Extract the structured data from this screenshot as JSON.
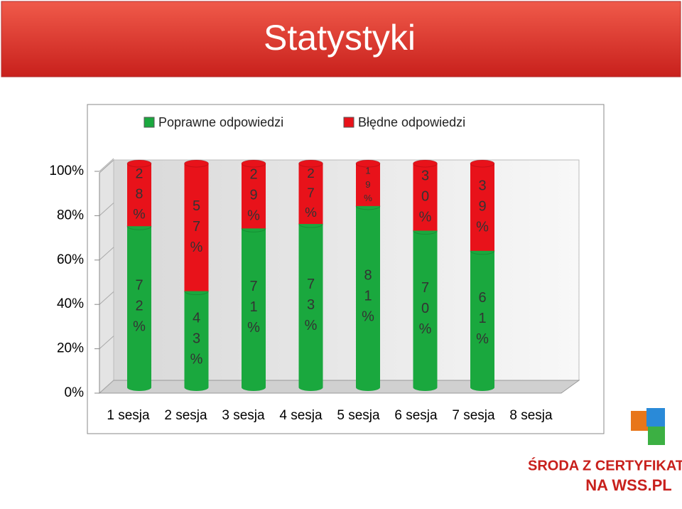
{
  "title": "Statystyki",
  "logo": [
    "ŚRODA Z CERTYFIKATEM",
    "NA WSS.PL"
  ],
  "chart_data": {
    "type": "stacked_bar",
    "categories": [
      "1 sesja",
      "2 sesja",
      "3 sesja",
      "4 sesja",
      "5 sesja",
      "6 sesja",
      "7 sesja",
      "8 sesja"
    ],
    "series": [
      {
        "name": "Poprawne odpowiedzi",
        "color": "#1aa83e",
        "values": [
          72,
          43,
          71,
          73,
          81,
          70,
          61,
          null
        ],
        "value_labels": [
          "72%",
          "43%",
          "71%",
          "73%",
          "81%",
          "70%",
          "61%",
          null
        ]
      },
      {
        "name": "Błędne odpowiedzi",
        "color": "#e8121a",
        "values": [
          28,
          57,
          29,
          27,
          19,
          30,
          39,
          null
        ],
        "value_labels": [
          "28%",
          "57%",
          "29%",
          "27%",
          "19%",
          "30%",
          "39%",
          null
        ]
      }
    ],
    "ylim": [
      0,
      100
    ],
    "yticks": [
      {
        "value": 0,
        "label": "0%"
      },
      {
        "value": 20,
        "label": "20%"
      },
      {
        "value": 40,
        "label": "40%"
      },
      {
        "value": 60,
        "label": "60%"
      },
      {
        "value": 80,
        "label": "80%"
      },
      {
        "value": 100,
        "label": "100%"
      }
    ],
    "legend": "top"
  }
}
